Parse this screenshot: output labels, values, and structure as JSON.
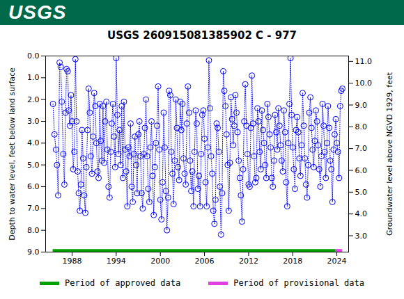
{
  "chart_data": {
    "type": "scatter",
    "logo_text": "USGS",
    "title": "USGS 260915081385902 C  - 977",
    "ylabel": "Depth to water level, feet below land surface",
    "y2label": "Groundwater level above NGVD 1929, feet",
    "color": "#0000ff",
    "marker": "circle",
    "line_style": "dotted",
    "xlim": [
      1984.4,
      2025.6
    ],
    "xticks": [
      1988,
      1994,
      2000,
      2006,
      2012,
      2018,
      2024
    ],
    "ylim": [
      0,
      9
    ],
    "yticks": [
      {
        "value": 0,
        "label": "0.0"
      },
      {
        "value": 1,
        "label": "1.0"
      },
      {
        "value": 2,
        "label": "2.0"
      },
      {
        "value": 3,
        "label": "3.0"
      },
      {
        "value": 4,
        "label": "4.0"
      },
      {
        "value": 5,
        "label": "5.0"
      },
      {
        "value": 6,
        "label": "6.0"
      },
      {
        "value": 7,
        "label": "7.0"
      },
      {
        "value": 8,
        "label": "8.0"
      },
      {
        "value": 9,
        "label": "9.0"
      }
    ],
    "y2lim": [
      11.25,
      2.25
    ],
    "y2ticks": [
      {
        "value": 3,
        "label": "3.0"
      },
      {
        "value": 4,
        "label": "4.0"
      },
      {
        "value": 5,
        "label": "5.0"
      },
      {
        "value": 6,
        "label": "6.0"
      },
      {
        "value": 7,
        "label": "7.0"
      },
      {
        "value": 8,
        "label": "8.0"
      },
      {
        "value": 9,
        "label": "9.0"
      },
      {
        "value": 10,
        "label": "10.0"
      },
      {
        "value": 11,
        "label": "11.0"
      }
    ],
    "periods": [
      {
        "name": "Period of approved data",
        "color": "#00a000",
        "start": 1985.4,
        "end": 2023.8
      },
      {
        "name": "Period of provisional data",
        "color": "#e040e0",
        "start": 2023.8,
        "end": 2024.75
      }
    ],
    "x": [
      1985.4,
      1985.6,
      1985.8,
      1985.95,
      1986.1,
      1986.3,
      1986.45,
      1986.6,
      1986.8,
      1986.95,
      1987.1,
      1987.25,
      1987.4,
      1987.55,
      1987.7,
      1987.85,
      1988.0,
      1988.15,
      1988.3,
      1988.45,
      1988.6,
      1988.75,
      1988.9,
      1989.05,
      1989.2,
      1989.35,
      1989.5,
      1989.65,
      1989.8,
      1989.95,
      1990.1,
      1990.25,
      1990.4,
      1990.55,
      1990.7,
      1990.85,
      1991.0,
      1991.15,
      1991.3,
      1991.45,
      1991.6,
      1991.75,
      1991.9,
      1992.05,
      1992.2,
      1992.35,
      1992.5,
      1992.65,
      1992.8,
      1992.95,
      1993.1,
      1993.25,
      1993.4,
      1993.55,
      1993.7,
      1993.85,
      1994.0,
      1994.15,
      1994.3,
      1994.45,
      1994.6,
      1994.75,
      1994.9,
      1995.05,
      1995.2,
      1995.35,
      1995.5,
      1995.65,
      1995.8,
      1995.95,
      1996.1,
      1996.25,
      1996.4,
      1996.55,
      1996.7,
      1996.85,
      1997.0,
      1997.15,
      1997.3,
      1997.45,
      1997.6,
      1997.75,
      1997.9,
      1998.05,
      1998.2,
      1998.35,
      1998.5,
      1998.65,
      1998.8,
      1998.95,
      1999.1,
      1999.25,
      1999.4,
      1999.55,
      1999.7,
      1999.85,
      2000.0,
      2000.15,
      2000.3,
      2000.45,
      2000.6,
      2000.75,
      2000.9,
      2001.05,
      2001.2,
      2001.35,
      2001.5,
      2001.65,
      2001.8,
      2001.95,
      2002.1,
      2002.25,
      2002.4,
      2002.55,
      2002.7,
      2002.85,
      2003.0,
      2003.15,
      2003.3,
      2003.45,
      2003.6,
      2003.75,
      2003.9,
      2004.05,
      2004.2,
      2004.35,
      2004.5,
      2004.65,
      2004.8,
      2004.95,
      2005.1,
      2005.25,
      2005.4,
      2005.55,
      2005.7,
      2005.85,
      2006.0,
      2006.15,
      2006.3,
      2006.45,
      2006.6,
      2006.75,
      2006.9,
      2007.05,
      2007.2,
      2007.35,
      2007.5,
      2007.65,
      2007.8,
      2007.95,
      2008.1,
      2008.25,
      2008.4,
      2008.55,
      2008.7,
      2008.85,
      2009.0,
      2009.15,
      2009.3,
      2009.45,
      2009.6,
      2009.75,
      2009.9,
      2010.05,
      2010.2,
      2010.35,
      2010.5,
      2010.65,
      2010.8,
      2010.95,
      2011.1,
      2011.25,
      2011.4,
      2011.55,
      2011.7,
      2011.85,
      2012.0,
      2012.15,
      2012.3,
      2012.45,
      2012.6,
      2012.75,
      2012.9,
      2013.05,
      2013.2,
      2013.35,
      2013.5,
      2013.65,
      2013.8,
      2013.95,
      2014.1,
      2014.25,
      2014.4,
      2014.55,
      2014.7,
      2014.85,
      2015.0,
      2015.15,
      2015.3,
      2015.45,
      2015.6,
      2015.75,
      2015.9,
      2016.05,
      2016.2,
      2016.35,
      2016.5,
      2016.65,
      2016.8,
      2016.95,
      2017.1,
      2017.25,
      2017.4,
      2017.55,
      2017.7,
      2017.85,
      2018.0,
      2018.15,
      2018.3,
      2018.45,
      2018.6,
      2018.75,
      2018.9,
      2019.05,
      2019.2,
      2019.35,
      2019.5,
      2019.65,
      2019.8,
      2019.95,
      2020.1,
      2020.25,
      2020.4,
      2020.55,
      2020.7,
      2020.85,
      2021.0,
      2021.15,
      2021.3,
      2021.45,
      2021.6,
      2021.75,
      2021.9,
      2022.05,
      2022.2,
      2022.35,
      2022.5,
      2022.65,
      2022.8,
      2022.95,
      2023.1,
      2023.25,
      2023.4,
      2023.55,
      2023.7,
      2023.85,
      2024.0,
      2024.15,
      2024.3,
      2024.45,
      2024.6,
      2024.75
    ],
    "values": [
      2.2,
      3.6,
      4.3,
      5.0,
      6.4,
      0.3,
      0.5,
      2.1,
      4.5,
      5.9,
      2.6,
      0.6,
      0.7,
      2.5,
      3.2,
      1.8,
      3.0,
      5.2,
      4.4,
      0.15,
      3.0,
      5.3,
      6.3,
      7.1,
      5.9,
      3.4,
      4.7,
      6.4,
      7.2,
      5.1,
      3.4,
      1.5,
      2.6,
      4.6,
      5.4,
      3.7,
      1.7,
      2.3,
      4.0,
      5.3,
      5.6,
      2.2,
      3.9,
      4.8,
      2.3,
      4.9,
      3.0,
      2.1,
      4.3,
      6.0,
      6.5,
      4.4,
      3.1,
      2.2,
      3.7,
      5.1,
      0.1,
      2.7,
      4.5,
      3.4,
      5.0,
      2.3,
      5.6,
      2.1,
      4.3,
      5.3,
      6.9,
      4.2,
      4.6,
      3.1,
      6.0,
      6.7,
      4.5,
      3.7,
      5.0,
      6.3,
      3.6,
      3.0,
      4.6,
      6.3,
      7.0,
      4.5,
      3.3,
      2.0,
      4.6,
      6.1,
      6.7,
      4.2,
      3.0,
      5.5,
      7.3,
      5.1,
      4.0,
      3.2,
      1.4,
      4.3,
      6.6,
      7.5,
      5.8,
      2.6,
      4.2,
      6.2,
      8.0,
      6.5,
      1.6,
      1.8,
      4.4,
      5.4,
      6.8,
      4.8,
      2.0,
      3.3,
      5.1,
      5.7,
      2.1,
      3.4,
      2.2,
      4.7,
      5.4,
      5.9,
      3.1,
      1.4,
      2.6,
      4.8,
      6.2,
      5.3,
      6.9,
      4.4,
      2.5,
      3.1,
      6.1,
      5.5,
      6.9,
      4.5,
      2.7,
      2.5,
      3.8,
      5.8,
      6.9,
      4.2,
      0.2,
      2.4,
      4.6,
      5.4,
      7.1,
      7.7,
      6.6,
      3.1,
      3.3,
      4.4,
      6.0,
      8.2,
      6.3,
      0.7,
      1.6,
      2.3,
      3.6,
      5.0,
      7.1,
      4.9,
      1.9,
      2.9,
      4.1,
      3.2,
      1.8,
      2.6,
      3.5,
      4.8,
      5.6,
      6.4,
      7.6,
      5.2,
      3.0,
      1.3,
      3.2,
      4.5,
      5.9,
      6.0,
      3.3,
      0.9,
      3.1,
      4.6,
      5.8,
      5.6,
      2.4,
      3.0,
      4.4,
      5.2,
      2.5,
      3.4,
      4.0,
      5.0,
      5.6,
      2.2,
      2.8,
      3.6,
      4.2,
      5.6,
      6.0,
      4.8,
      2.7,
      3.5,
      4.3,
      2.4,
      3.2,
      4.1,
      4.8,
      5.3,
      2.5,
      3.5,
      5.8,
      6.9,
      4.0,
      2.2,
      0.1,
      2.7,
      4.2,
      5.2,
      6.1,
      3.4,
      2.8,
      3.5,
      4.7,
      5.5,
      4.1,
      1.7,
      3.2,
      4.7,
      5.9,
      6.5,
      5.0,
      2.6,
      1.9,
      3.3,
      4.3,
      5.1,
      3.9,
      2.5,
      3.0,
      4.1,
      5.2,
      6.0,
      4.6,
      2.2,
      3.2,
      4.4,
      5.6,
      4.0,
      2.3,
      3.3,
      4.8,
      5.2,
      6.7,
      4.3,
      3.6,
      2.9,
      4.0,
      4.4,
      5.6,
      2.3,
      1.6,
      1.5
    ]
  }
}
